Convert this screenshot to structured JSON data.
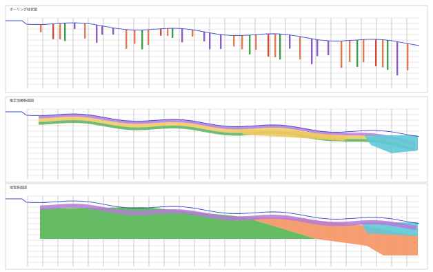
{
  "panels": [
    {
      "title": "ボーリング柱状図"
    },
    {
      "title": "推定地層断面図"
    },
    {
      "title": "地質断面図"
    }
  ]
}
